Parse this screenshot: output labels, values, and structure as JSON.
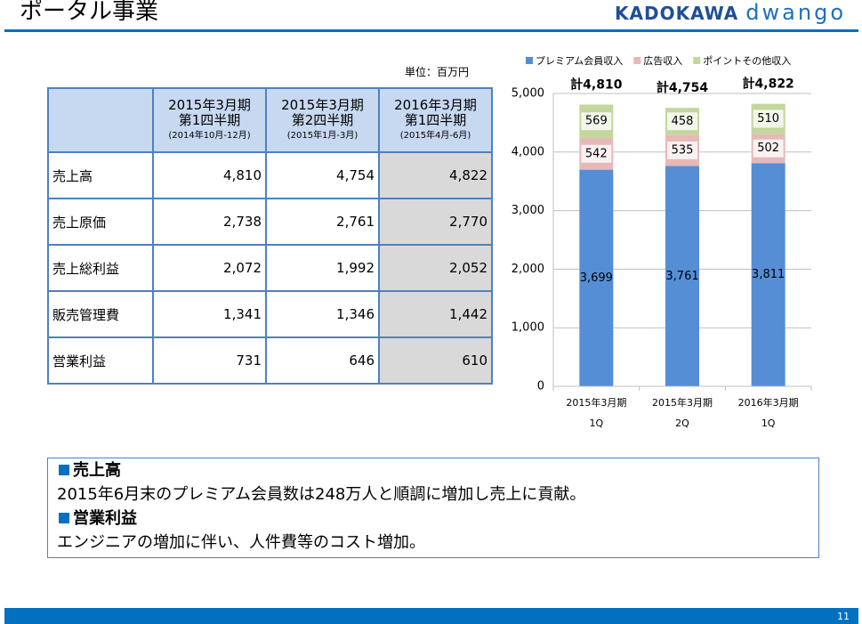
{
  "header": {
    "title": "ポータル事業",
    "logo_left": "KADOKAWA",
    "logo_right": "dwango"
  },
  "table": {
    "unit": "単位：百万円",
    "columns": [
      {
        "period": "2015年3月期",
        "quarter": "第1四半期",
        "range": "(2014年10月-12月)"
      },
      {
        "period": "2015年3月期",
        "quarter": "第2四半期",
        "range": "(2015年1月-3月)"
      },
      {
        "period": "2016年3月期",
        "quarter": "第1四半期",
        "range": "(2015年4月-6月)"
      }
    ],
    "rows": [
      [
        "売上高",
        "4,810",
        "4,754",
        "4,822"
      ],
      [
        "売上原価",
        "2,738",
        "2,761",
        "2,770"
      ],
      [
        "売上総利益",
        "2,072",
        "1,992",
        "2,052"
      ],
      [
        "販売管理費",
        "1,341",
        "1,346",
        "1,442"
      ],
      [
        "営業利益",
        "731",
        "646",
        "610"
      ]
    ]
  },
  "chart_data": {
    "type": "bar",
    "stacked": true,
    "categories": [
      "2015年3月期\n1Q",
      "2015年3月期\n2Q",
      "2016年3月期\n1Q"
    ],
    "series": [
      {
        "name": "プレミアム会員収入",
        "color": "#558ed5",
        "values": [
          3699,
          3761,
          3811
        ],
        "value_labels": [
          "3,699",
          "3,761",
          "3,811"
        ]
      },
      {
        "name": "広告収入",
        "color": "#e6b9b8",
        "values": [
          542,
          535,
          502
        ]
      },
      {
        "name": "ポイントその他収入",
        "color": "#c3d69b",
        "values": [
          569,
          458,
          510
        ]
      }
    ],
    "total_labels": [
      "計4,810",
      "計4,754",
      "計4,822"
    ],
    "ylim": [
      0,
      5000
    ],
    "yticks": [
      0,
      {
        "value": 1000,
        "label": "1,000"
      },
      {
        "value": 2000,
        "label": "2,000"
      },
      {
        "value": 3000,
        "label": "3,000"
      },
      {
        "value": 4000,
        "label": "4,000"
      },
      {
        "value": 5000,
        "label": "5,000"
      }
    ],
    "grid": true,
    "legend": "top"
  },
  "notes": [
    {
      "heading": "売上高",
      "text": "2015年6月末のプレミアム会員数は248万人と順調に増加し売上に貢献。"
    },
    {
      "heading": "営業利益",
      "text": "エンジニアの増加に伴い、人件費等のコスト増加。"
    }
  ],
  "footer": {
    "page": "11"
  }
}
